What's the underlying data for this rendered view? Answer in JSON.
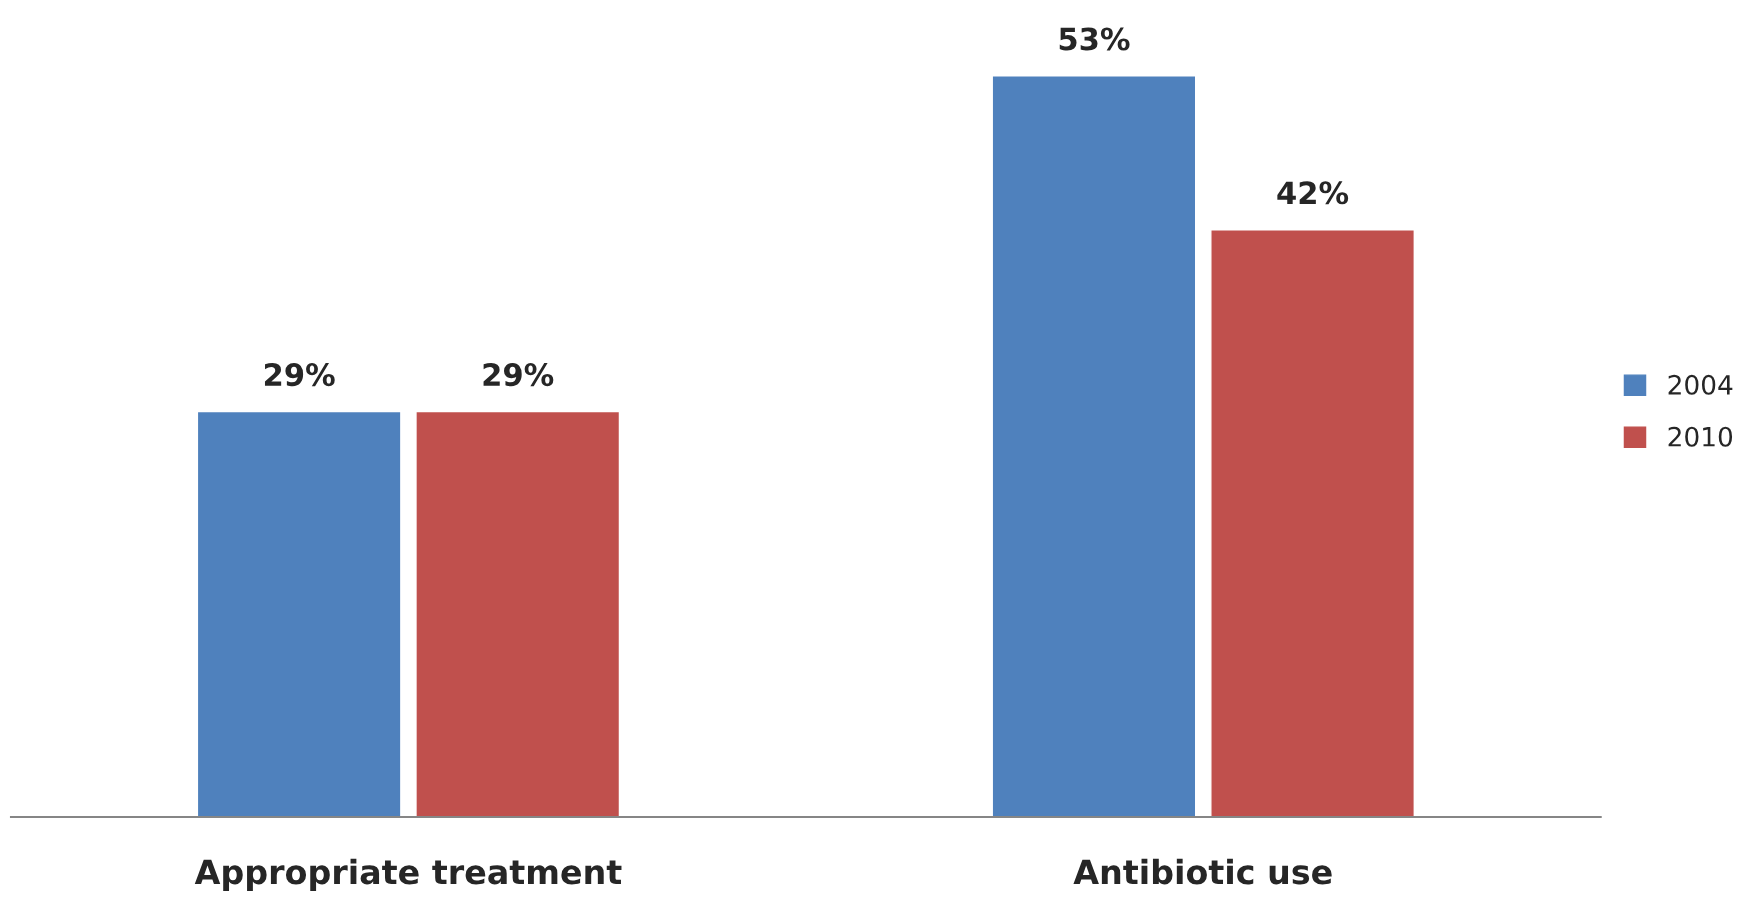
{
  "chart_data": {
    "type": "bar",
    "categories": [
      "Appropriate treatment",
      "Antibiotic use"
    ],
    "series": [
      {
        "name": "2004",
        "color": "#4f81bd",
        "values": [
          29,
          53
        ],
        "value_labels": [
          "29%",
          "53%"
        ]
      },
      {
        "name": "2010",
        "color": "#c0504d",
        "values": [
          29,
          42
        ],
        "value_labels": [
          "29%",
          "42%"
        ]
      }
    ],
    "legend": "right",
    "grid": false
  }
}
